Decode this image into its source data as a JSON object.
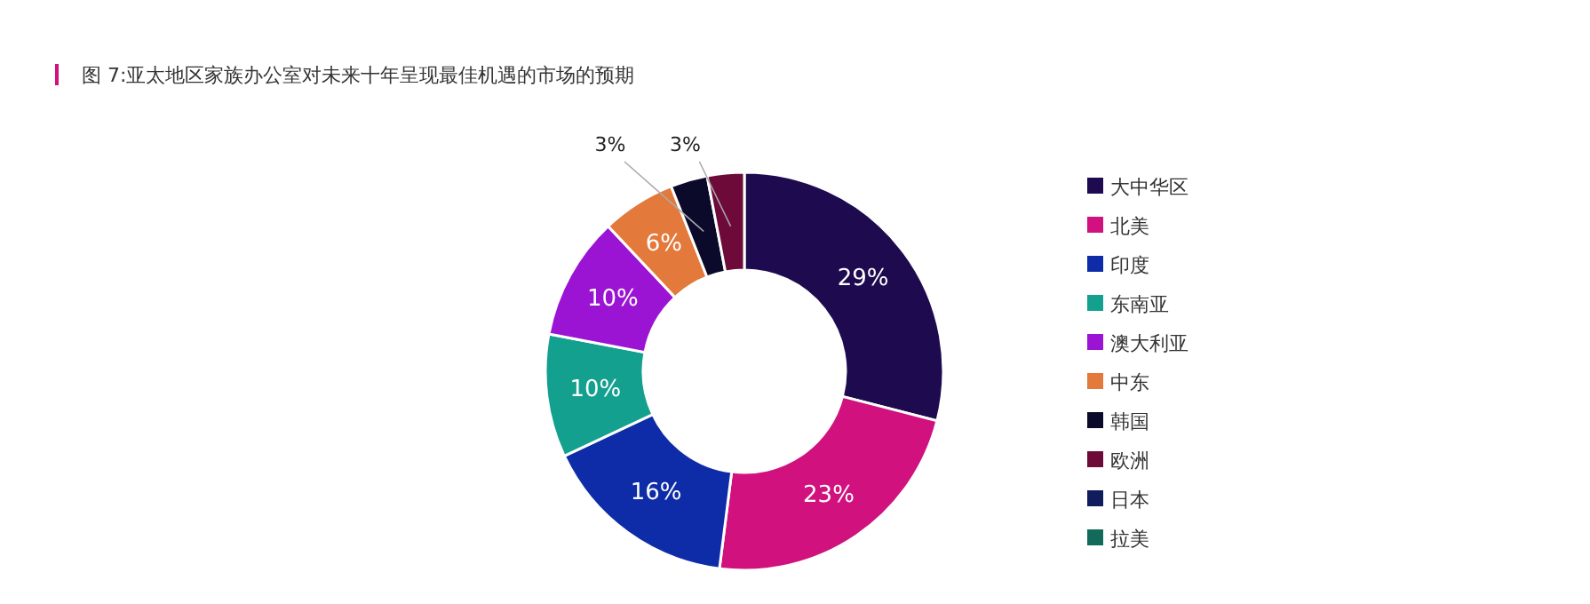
{
  "chart_data": {
    "type": "donut",
    "title": "图 7:亚太地区家族办公室对未来十年呈现最佳机遇的市场的预期",
    "categories": [
      "大中华区",
      "北美",
      "印度",
      "东南亚",
      "澳大利亚",
      "中东",
      "韩国",
      "欧洲",
      "日本",
      "拉美"
    ],
    "values": [
      29,
      23,
      16,
      10,
      10,
      6,
      3,
      3,
      0,
      0
    ],
    "value_labels": [
      "29%",
      "23%",
      "16%",
      "10%",
      "10%",
      "6%",
      "3%",
      "3%",
      null,
      null
    ],
    "colors": [
      "#1e0b4f",
      "#d0117e",
      "#0f2ca8",
      "#14a08f",
      "#9b14d4",
      "#e3793a",
      "#0b0a2a",
      "#6d0a3a",
      "#101c5c",
      "#126b5a"
    ],
    "legend": "right"
  }
}
